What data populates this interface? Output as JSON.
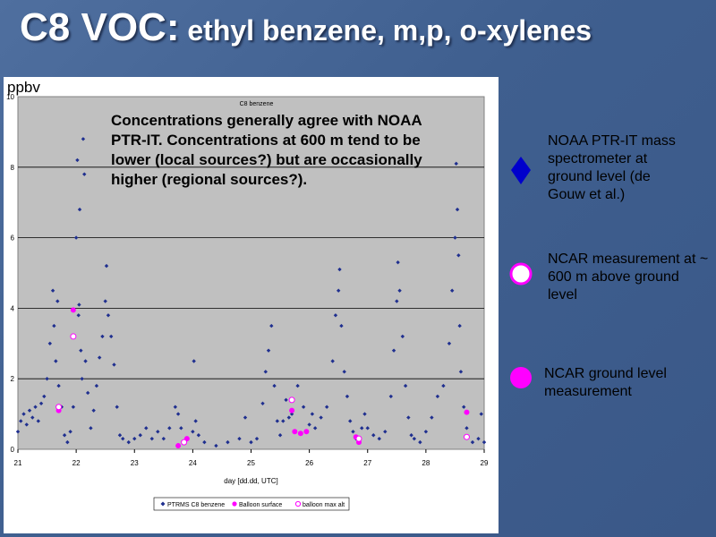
{
  "slide": {
    "title_main": "C8 VOC:",
    "title_rest": "ethyl benzene, m,p, o-xylenes"
  },
  "chart_data": {
    "type": "scatter",
    "title": "C8 benzene",
    "ylabel": "ppbv",
    "xlabel": "day [dd.dd, UTC]",
    "xlim": [
      21,
      29
    ],
    "ylim": [
      0,
      10
    ],
    "x_ticks": [
      "21",
      "22",
      "23",
      "24",
      "25",
      "26",
      "27",
      "28",
      "29"
    ],
    "y_ticks": [
      "0",
      "2",
      "4",
      "6",
      "8",
      "10"
    ],
    "grid": "horizontal",
    "legend_position": "bottom",
    "series": [
      {
        "name": "PTRMS C8 benzene",
        "marker": "diamond",
        "color": "#1f2f8f",
        "points": [
          [
            21.0,
            0.5
          ],
          [
            21.05,
            0.8
          ],
          [
            21.1,
            1.0
          ],
          [
            21.15,
            0.7
          ],
          [
            21.2,
            1.1
          ],
          [
            21.25,
            0.9
          ],
          [
            21.3,
            1.2
          ],
          [
            21.35,
            0.8
          ],
          [
            21.4,
            1.3
          ],
          [
            21.45,
            1.5
          ],
          [
            21.5,
            2.0
          ],
          [
            21.55,
            3.0
          ],
          [
            21.6,
            4.5
          ],
          [
            21.62,
            3.5
          ],
          [
            21.65,
            2.5
          ],
          [
            21.68,
            4.2
          ],
          [
            21.7,
            1.8
          ],
          [
            21.75,
            1.2
          ],
          [
            21.8,
            0.4
          ],
          [
            21.85,
            0.2
          ],
          [
            21.9,
            0.5
          ],
          [
            21.95,
            1.2
          ],
          [
            22.0,
            6.0
          ],
          [
            22.02,
            8.2
          ],
          [
            22.04,
            3.8
          ],
          [
            22.05,
            4.1
          ],
          [
            22.06,
            6.8
          ],
          [
            22.08,
            2.8
          ],
          [
            22.1,
            2.0
          ],
          [
            22.12,
            8.8
          ],
          [
            22.14,
            7.8
          ],
          [
            22.16,
            2.5
          ],
          [
            22.2,
            1.6
          ],
          [
            22.25,
            0.6
          ],
          [
            22.3,
            1.1
          ],
          [
            22.35,
            1.8
          ],
          [
            22.4,
            2.6
          ],
          [
            22.45,
            3.2
          ],
          [
            22.5,
            4.2
          ],
          [
            22.52,
            5.2
          ],
          [
            22.55,
            3.8
          ],
          [
            22.6,
            3.2
          ],
          [
            22.65,
            2.4
          ],
          [
            22.7,
            1.2
          ],
          [
            22.75,
            0.4
          ],
          [
            22.8,
            0.3
          ],
          [
            22.9,
            0.2
          ],
          [
            23.0,
            0.3
          ],
          [
            23.1,
            0.4
          ],
          [
            23.2,
            0.6
          ],
          [
            23.3,
            0.3
          ],
          [
            23.4,
            0.5
          ],
          [
            23.5,
            0.3
          ],
          [
            23.6,
            0.6
          ],
          [
            23.7,
            1.2
          ],
          [
            23.75,
            1.0
          ],
          [
            23.8,
            0.6
          ],
          [
            23.9,
            0.3
          ],
          [
            24.0,
            0.5
          ],
          [
            24.02,
            2.5
          ],
          [
            24.05,
            0.8
          ],
          [
            24.1,
            0.4
          ],
          [
            24.2,
            0.2
          ],
          [
            24.4,
            0.1
          ],
          [
            24.6,
            0.2
          ],
          [
            24.8,
            0.3
          ],
          [
            24.9,
            0.9
          ],
          [
            25.0,
            0.2
          ],
          [
            25.1,
            0.3
          ],
          [
            25.2,
            1.3
          ],
          [
            25.25,
            2.2
          ],
          [
            25.3,
            2.8
          ],
          [
            25.35,
            3.5
          ],
          [
            25.4,
            1.8
          ],
          [
            25.45,
            0.8
          ],
          [
            25.5,
            0.4
          ],
          [
            25.55,
            0.8
          ],
          [
            25.6,
            1.4
          ],
          [
            25.65,
            0.9
          ],
          [
            25.7,
            1.0
          ],
          [
            25.8,
            1.8
          ],
          [
            25.9,
            1.2
          ],
          [
            26.0,
            0.7
          ],
          [
            26.05,
            1.0
          ],
          [
            26.1,
            0.6
          ],
          [
            26.2,
            0.9
          ],
          [
            26.3,
            1.2
          ],
          [
            26.4,
            2.5
          ],
          [
            26.45,
            3.8
          ],
          [
            26.5,
            4.5
          ],
          [
            26.52,
            5.1
          ],
          [
            26.55,
            3.5
          ],
          [
            26.6,
            2.2
          ],
          [
            26.65,
            1.5
          ],
          [
            26.7,
            0.8
          ],
          [
            26.75,
            0.5
          ],
          [
            26.8,
            0.3
          ],
          [
            26.85,
            0.2
          ],
          [
            26.9,
            0.6
          ],
          [
            26.95,
            1.0
          ],
          [
            27.0,
            0.6
          ],
          [
            27.1,
            0.4
          ],
          [
            27.2,
            0.3
          ],
          [
            27.3,
            0.5
          ],
          [
            27.4,
            1.5
          ],
          [
            27.45,
            2.8
          ],
          [
            27.5,
            4.2
          ],
          [
            27.52,
            5.3
          ],
          [
            27.55,
            4.5
          ],
          [
            27.6,
            3.2
          ],
          [
            27.65,
            1.8
          ],
          [
            27.7,
            0.9
          ],
          [
            27.75,
            0.4
          ],
          [
            27.8,
            0.3
          ],
          [
            27.9,
            0.2
          ],
          [
            28.0,
            0.5
          ],
          [
            28.1,
            0.9
          ],
          [
            28.2,
            1.5
          ],
          [
            28.3,
            1.8
          ],
          [
            28.4,
            3.0
          ],
          [
            28.45,
            4.5
          ],
          [
            28.5,
            6.0
          ],
          [
            28.52,
            8.1
          ],
          [
            28.54,
            6.8
          ],
          [
            28.56,
            5.5
          ],
          [
            28.58,
            3.5
          ],
          [
            28.6,
            2.2
          ],
          [
            28.65,
            1.2
          ],
          [
            28.7,
            0.6
          ],
          [
            28.8,
            0.2
          ],
          [
            28.9,
            0.3
          ],
          [
            28.95,
            1.0
          ],
          [
            29.0,
            0.2
          ]
        ]
      },
      {
        "name": "Balloon surface",
        "marker": "filled-circle",
        "color": "#ff00ff",
        "points": [
          [
            21.7,
            1.1
          ],
          [
            21.95,
            3.95
          ],
          [
            23.75,
            0.1
          ],
          [
            23.9,
            0.3
          ],
          [
            25.7,
            1.1
          ],
          [
            25.75,
            0.5
          ],
          [
            25.85,
            0.45
          ],
          [
            25.95,
            0.5
          ],
          [
            26.8,
            0.35
          ],
          [
            26.85,
            0.2
          ],
          [
            28.7,
            1.05
          ]
        ]
      },
      {
        "name": "balloon max alt",
        "marker": "open-circle",
        "color": "#ff00ff",
        "points": [
          [
            21.7,
            1.2
          ],
          [
            21.95,
            3.2
          ],
          [
            23.85,
            0.2
          ],
          [
            25.7,
            1.4
          ],
          [
            26.85,
            0.3
          ],
          [
            28.7,
            0.35
          ]
        ]
      }
    ]
  },
  "annotation": {
    "text": "Concentrations generally agree with NOAA PTR-IT. Concentrations at 600 m tend to be lower (local sources?) but are occasionally higher (regional sources?)."
  },
  "side_legend": [
    {
      "shape": "blue-diamond-icon",
      "color": "#0000cc",
      "text": "NOAA PTR-IT mass spectrometer at ground level (de Gouw et al.)"
    },
    {
      "shape": "white-circle-icon",
      "color": "#ff00ff",
      "text": "NCAR measurement at ~ 600 m above ground level"
    },
    {
      "shape": "magenta-circle-icon",
      "color": "#ff00ff",
      "text": "NCAR ground level measurement"
    }
  ]
}
